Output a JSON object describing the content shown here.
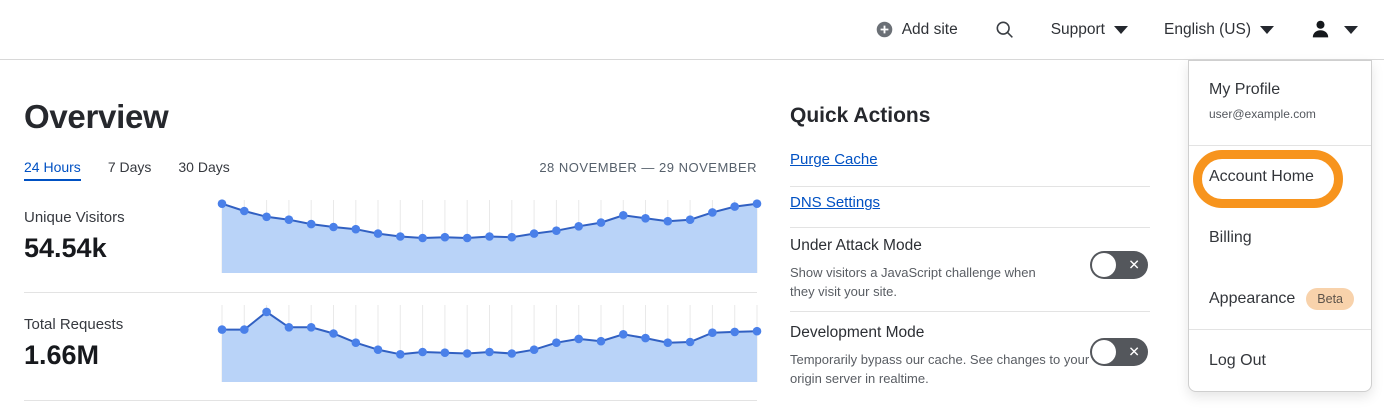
{
  "header": {
    "add_site_label": "Add site",
    "support_label": "Support",
    "language_label": "English (US)"
  },
  "overview": {
    "title": "Overview",
    "tabs": [
      {
        "label": "24 Hours",
        "active": true
      },
      {
        "label": "7 Days",
        "active": false
      },
      {
        "label": "30 Days",
        "active": false
      }
    ],
    "date_range": "28 NOVEMBER — 29 NOVEMBER",
    "stats": [
      {
        "label": "Unique Visitors",
        "value": "54.54k"
      },
      {
        "label": "Total Requests",
        "value": "1.66M"
      }
    ]
  },
  "quick_actions": {
    "title": "Quick Actions",
    "links": [
      "Purge Cache",
      "DNS Settings"
    ],
    "toggles": [
      {
        "title": "Under Attack Mode",
        "description": "Show visitors a JavaScript challenge when they visit your site.",
        "state": "off"
      },
      {
        "title": "Development Mode",
        "description": "Temporarily bypass our cache. See changes to your origin server in realtime.",
        "state": "off"
      }
    ]
  },
  "account_menu": {
    "profile_label": "My Profile",
    "profile_email": "user@example.com",
    "items": [
      "Account Home",
      "Billing",
      "Appearance",
      "Log Out"
    ],
    "beta_badge": "Beta",
    "highlighted_item": "Account Home",
    "highlight_color": "#f7941d"
  },
  "chart_data": [
    {
      "type": "area",
      "title": "Unique Visitors",
      "total": "54.54k",
      "x_range": "28 November — 29 November, hourly (24 Hours view)",
      "ylim": [
        0,
        1
      ],
      "unit": "relative height (y-axis unlabeled)",
      "grid": "vertical",
      "legend": "none",
      "values": [
        0.95,
        0.85,
        0.77,
        0.73,
        0.67,
        0.63,
        0.6,
        0.54,
        0.5,
        0.48,
        0.49,
        0.48,
        0.5,
        0.49,
        0.54,
        0.58,
        0.64,
        0.69,
        0.79,
        0.75,
        0.71,
        0.73,
        0.83,
        0.91,
        0.95
      ]
    },
    {
      "type": "area",
      "title": "Total Requests",
      "total": "1.66M",
      "x_range": "28 November — 29 November, hourly (24 Hours view)",
      "ylim": [
        0,
        1
      ],
      "unit": "relative height (y-axis unlabeled)",
      "grid": "vertical",
      "legend": "none",
      "values": [
        0.68,
        0.68,
        0.91,
        0.71,
        0.71,
        0.63,
        0.51,
        0.42,
        0.36,
        0.39,
        0.38,
        0.37,
        0.39,
        0.37,
        0.42,
        0.51,
        0.56,
        0.53,
        0.62,
        0.57,
        0.51,
        0.52,
        0.64,
        0.65,
        0.66
      ]
    }
  ],
  "colors": {
    "accent_blue": "#0051c3",
    "chart_line": "#3160c2",
    "chart_fill": "#b9d3f8",
    "chart_dot": "#4a80e9",
    "chart_grid": "#e9e9e9",
    "toggle_bg": "#54575c",
    "beta_bg": "#f8d2ab",
    "highlight_orange": "#f7941d"
  }
}
